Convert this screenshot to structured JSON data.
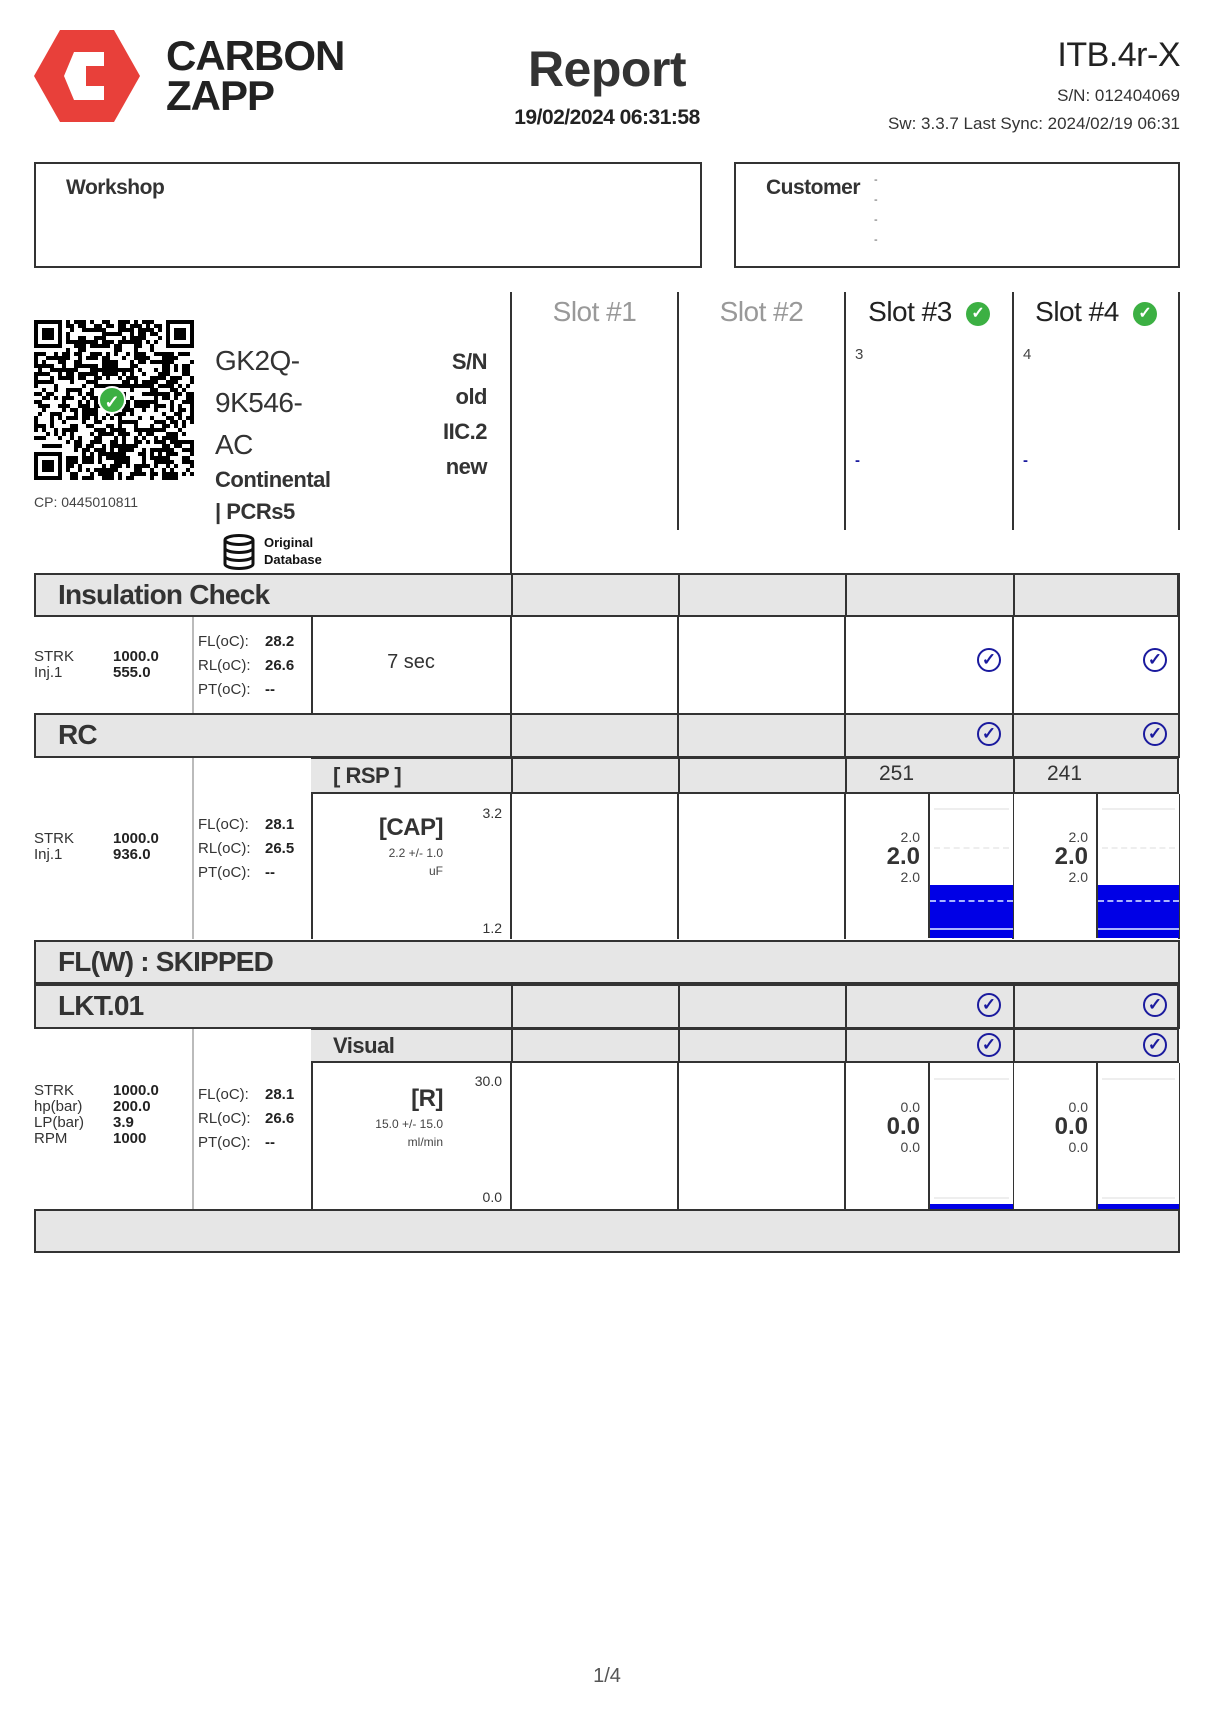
{
  "header": {
    "brand_line1": "CARBON",
    "brand_line2": "ZAPP",
    "title": "Report",
    "datetime": "19/02/2024 06:31:58",
    "device": "ITB.4r-X",
    "serial": "S/N: 012404069",
    "software": "Sw: 3.3.7 Last Sync: 2024/02/19 06:31",
    "brand_color": "#e8403a"
  },
  "workshop": {
    "label": "Workshop"
  },
  "customer": {
    "label": "Customer",
    "lines": [
      "-",
      "-",
      "-",
      "-"
    ]
  },
  "part": {
    "code_lines": [
      "GK2Q-",
      "9K546-",
      "AC"
    ],
    "maker_lines": [
      "Continental",
      "| PCRs5"
    ],
    "right_lines": [
      "S/N",
      "old",
      "IIC.2",
      "new"
    ],
    "cp": "CP: 0445010811",
    "database_line1": "Original",
    "database_line2": "Database"
  },
  "slots": [
    {
      "label": "Slot #1",
      "active": false,
      "number": "",
      "note": ""
    },
    {
      "label": "Slot #2",
      "active": false,
      "number": "",
      "note": ""
    },
    {
      "label": "Slot #3",
      "active": true,
      "number": "3",
      "note": "-"
    },
    {
      "label": "Slot #4",
      "active": true,
      "number": "4",
      "note": "-"
    }
  ],
  "insulation": {
    "title": "Insulation Check",
    "params": [
      {
        "k": "STRK",
        "v": "1000.0"
      },
      {
        "k": "Inj.1",
        "v": "555.0"
      }
    ],
    "temps": [
      {
        "k": "FL(oC):",
        "v": "28.2"
      },
      {
        "k": "RL(oC):",
        "v": "26.6"
      },
      {
        "k": "PT(oC):",
        "v": "--"
      }
    ],
    "duration": "7 sec",
    "slot_pass": [
      false,
      false,
      true,
      true
    ]
  },
  "rc": {
    "title": "RC",
    "slot_pass": [
      false,
      false,
      true,
      true
    ],
    "params": [
      {
        "k": "STRK",
        "v": "1000.0"
      },
      {
        "k": "Inj.1",
        "v": "936.0"
      }
    ],
    "temps": [
      {
        "k": "FL(oC):",
        "v": "28.1"
      },
      {
        "k": "RL(oC):",
        "v": "26.5"
      },
      {
        "k": "PT(oC):",
        "v": "--"
      }
    ],
    "sub_header": "[ RSP ]",
    "measure": "[CAP]",
    "spec": "2.2 +/- 1.0",
    "unit": "uF",
    "max": "3.2",
    "min": "1.2",
    "slot_headers": [
      "",
      "",
      "251",
      "241"
    ],
    "results": [
      null,
      null,
      {
        "hi": "2.0",
        "value": "2.0",
        "lo": "2.0"
      },
      {
        "hi": "2.0",
        "value": "2.0",
        "lo": "2.0"
      }
    ]
  },
  "flw": {
    "title": "FL(W) : SKIPPED"
  },
  "lkt": {
    "title": "LKT.01",
    "slot_pass": [
      false,
      false,
      true,
      true
    ],
    "params": [
      {
        "k": "STRK",
        "v": "1000.0"
      },
      {
        "k": "hp(bar)",
        "v": "200.0"
      },
      {
        "k": "LP(bar)",
        "v": "3.9"
      },
      {
        "k": "RPM",
        "v": "1000"
      }
    ],
    "temps": [
      {
        "k": "FL(oC):",
        "v": "28.1"
      },
      {
        "k": "RL(oC):",
        "v": "26.6"
      },
      {
        "k": "PT(oC):",
        "v": "--"
      }
    ],
    "sub_header": "Visual",
    "visual_pass": [
      false,
      false,
      true,
      true
    ],
    "measure": "[R]",
    "spec": "15.0 +/- 15.0",
    "unit": "ml/min",
    "max": "30.0",
    "min": "0.0",
    "results": [
      null,
      null,
      {
        "hi": "0.0",
        "value": "0.0",
        "lo": "0.0"
      },
      {
        "hi": "0.0",
        "value": "0.0",
        "lo": "0.0"
      }
    ]
  },
  "footer": {
    "page": "1/4"
  }
}
